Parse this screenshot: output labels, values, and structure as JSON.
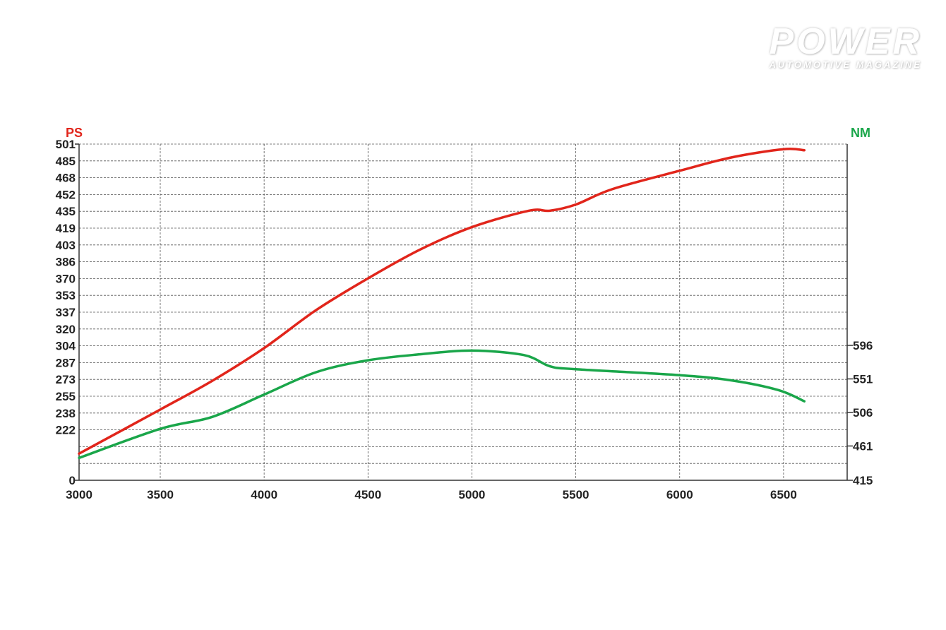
{
  "logo": {
    "title": "POWER",
    "subtitle": "AUTOMOTIVE MAGAZINE"
  },
  "chart_data": {
    "type": "line",
    "title": "",
    "xlabel": "",
    "left_axis_label": "PS",
    "right_axis_label": "NM",
    "x_ticks": [
      "3000",
      "3500",
      "4000",
      "4500",
      "5000",
      "5500",
      "6000",
      "6500"
    ],
    "left_ticks": [
      "501",
      "485",
      "468",
      "452",
      "435",
      "419",
      "403",
      "386",
      "370",
      "353",
      "337",
      "320",
      "304",
      "287",
      "273",
      "255",
      "238",
      "222",
      "",
      "",
      "0"
    ],
    "right_ticks": [
      "596",
      "551",
      "506",
      "461",
      "415"
    ],
    "xlim": [
      3000,
      6800
    ],
    "grid": true,
    "colors": {
      "ps": "#e1251b",
      "nm": "#1aa64a",
      "grid": "#555555"
    },
    "series": [
      {
        "name": "PS",
        "axis": "left",
        "x": [
          3000,
          3500,
          3750,
          4000,
          4250,
          4500,
          4750,
          5000,
          5275,
          5375,
          5500,
          5675,
          6000,
          6250,
          6500,
          6600
        ],
        "values": [
          199,
          242,
          270,
          302,
          339,
          370,
          398,
          420,
          436,
          436,
          442,
          457,
          475,
          488,
          496,
          495
        ]
      },
      {
        "name": "NM",
        "axis": "right",
        "x": [
          3000,
          3500,
          3750,
          4000,
          4250,
          4500,
          4750,
          5000,
          5250,
          5375,
          5500,
          6000,
          6250,
          6475,
          6600
        ],
        "values": [
          445,
          484,
          500,
          530,
          560,
          576,
          584,
          589,
          583,
          568,
          564,
          556,
          549,
          536,
          521
        ]
      }
    ]
  }
}
